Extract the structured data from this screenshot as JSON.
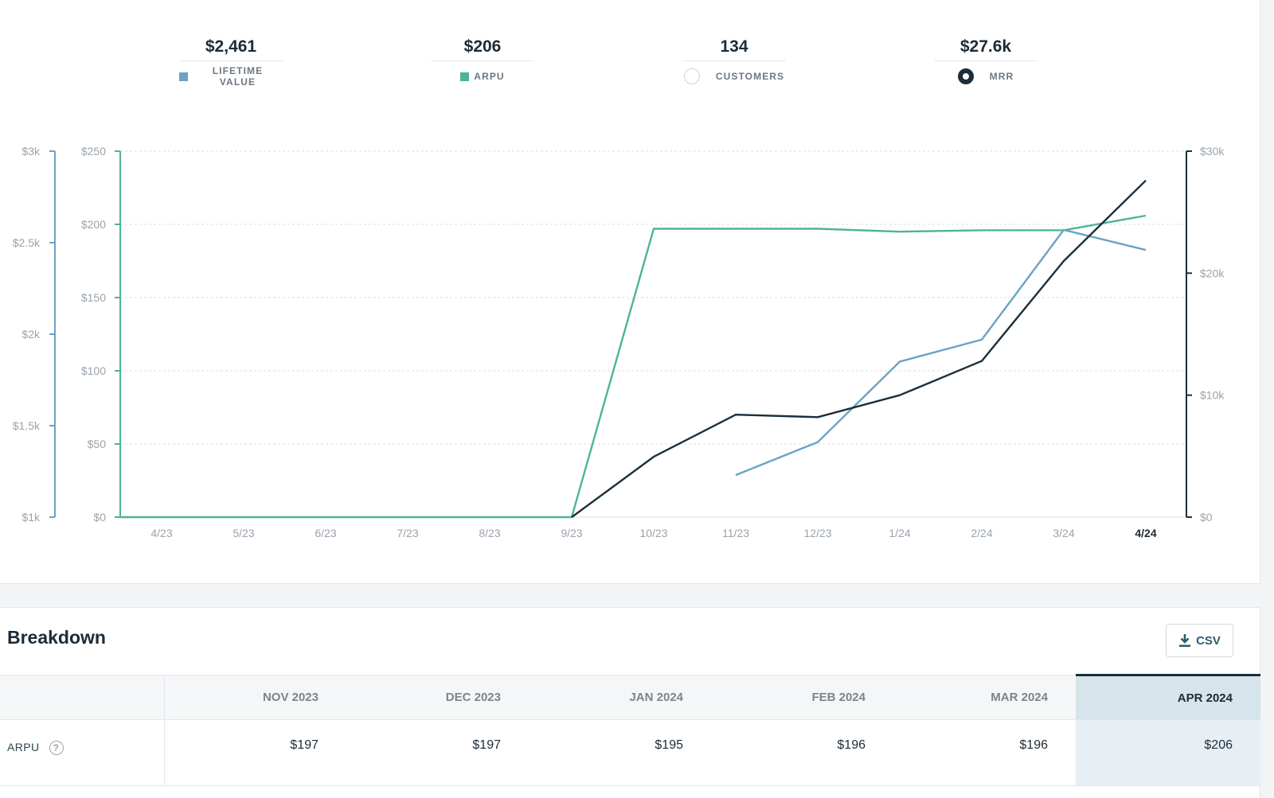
{
  "metrics": [
    {
      "value": "$2,461",
      "label": "LIFETIME VALUE",
      "marker": "swatch",
      "color": "#6aa3c4"
    },
    {
      "value": "$206",
      "label": "ARPU",
      "marker": "swatch",
      "color": "#4db39a"
    },
    {
      "value": "134",
      "label": "CUSTOMERS",
      "marker": "radio-off"
    },
    {
      "value": "$27.6k",
      "label": "MRR",
      "marker": "radio-on"
    }
  ],
  "chart_data": {
    "type": "line",
    "x": [
      "4/23",
      "5/23",
      "6/23",
      "7/23",
      "8/23",
      "9/23",
      "10/23",
      "11/23",
      "12/23",
      "1/24",
      "2/24",
      "3/24",
      "4/24"
    ],
    "highlight_x": "4/24",
    "series": [
      {
        "name": "ARPU",
        "axis": "arpu",
        "color": "#4db39a",
        "values": [
          0,
          0,
          0,
          0,
          0,
          0,
          197,
          197,
          197,
          195,
          196,
          196,
          206
        ]
      },
      {
        "name": "LIFETIME VALUE",
        "axis": "ltv",
        "color": "#6aa3c4",
        "values": [
          null,
          null,
          null,
          null,
          null,
          null,
          null,
          1230,
          1410,
          1850,
          1970,
          2570,
          2460
        ]
      },
      {
        "name": "MRR",
        "axis": "mrr",
        "color": "#1b2f3a",
        "values": [
          null,
          null,
          null,
          null,
          null,
          0,
          4950,
          8400,
          8200,
          10000,
          12800,
          21000,
          27600
        ]
      }
    ],
    "axes": {
      "ltv": {
        "ticks": [
          "$1k",
          "$1.5k",
          "$2k",
          "$2.5k",
          "$3k"
        ],
        "ylim": [
          1000,
          3000
        ],
        "color": "#6aa3c4"
      },
      "arpu": {
        "ticks": [
          "$0",
          "$50",
          "$100",
          "$150",
          "$200",
          "$250"
        ],
        "ylim": [
          0,
          250
        ],
        "color": "#4db39a"
      },
      "mrr": {
        "ticks": [
          "$0",
          "$10k",
          "$20k",
          "$30k"
        ],
        "ylim": [
          0,
          30000
        ],
        "color": "#1b2f3a"
      }
    },
    "grid": true
  },
  "breakdown": {
    "title": "Breakdown",
    "csv_label": "CSV",
    "columns": [
      "",
      "NOV 2023",
      "DEC 2023",
      "JAN 2024",
      "FEB 2024",
      "MAR 2024",
      "APR 2024"
    ],
    "rows": [
      {
        "label": "ARPU",
        "values": [
          "$197",
          "$197",
          "$195",
          "$196",
          "$196",
          "$206"
        ]
      }
    ]
  }
}
